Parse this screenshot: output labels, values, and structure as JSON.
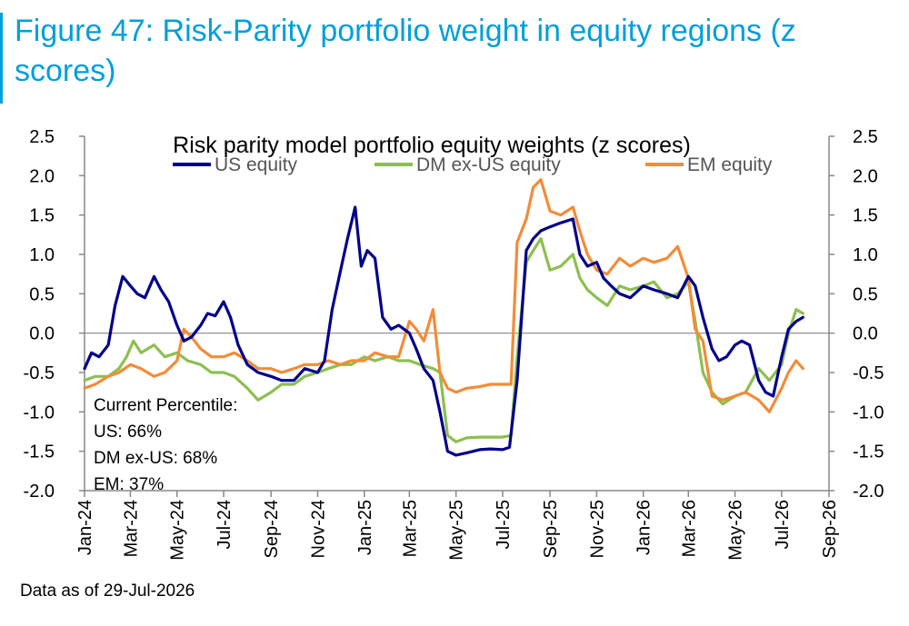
{
  "figure_title": "Figure 47: Risk-Parity portfolio weight in equity regions (z scores)",
  "source_note": "Data as of 29-Jul-2026",
  "chart_data": {
    "type": "line",
    "title": "Risk parity model portfolio equity weights (z scores)",
    "xlabel": "",
    "ylabel": "",
    "ylim": [
      -2.0,
      2.5
    ],
    "y_ticks": [
      "2.5",
      "2.0",
      "1.5",
      "1.0",
      "0.5",
      "0.0",
      "-0.5",
      "-1.0",
      "-1.5",
      "-2.0"
    ],
    "y_tick_values": [
      2.5,
      2.0,
      1.5,
      1.0,
      0.5,
      0.0,
      -0.5,
      -1.0,
      -1.5,
      -2.0
    ],
    "x_ticks": [
      "Jan-24",
      "Mar-24",
      "May-24",
      "Jul-24",
      "Sep-24",
      "Nov-24",
      "Jan-25",
      "Mar-25",
      "May-25",
      "Jul-25",
      "Sep-25",
      "Nov-25",
      "Jan-26",
      "Mar-26",
      "May-26",
      "Jul-26",
      "Sep-26"
    ],
    "x_tick_dates": [
      "2024-01-01",
      "2024-03-01",
      "2024-05-01",
      "2024-07-01",
      "2024-09-01",
      "2024-11-01",
      "2025-01-01",
      "2025-03-01",
      "2025-05-01",
      "2025-07-01",
      "2025-09-01",
      "2025-11-01",
      "2026-01-01",
      "2026-03-01",
      "2026-05-01",
      "2026-07-01",
      "2026-09-01"
    ],
    "grid": false,
    "legend_position": "top",
    "annotation": {
      "lines": [
        "Current Percentile:",
        "US: 66%",
        "DM ex-US: 68%",
        "EM: 37%"
      ]
    },
    "series": [
      {
        "name": "US equity",
        "color": "#00008b",
        "points": [
          [
            "2024-01-01",
            -0.45
          ],
          [
            "2024-01-10",
            -0.25
          ],
          [
            "2024-01-20",
            -0.3
          ],
          [
            "2024-02-01",
            -0.15
          ],
          [
            "2024-02-10",
            0.35
          ],
          [
            "2024-02-20",
            0.72
          ],
          [
            "2024-03-01",
            0.6
          ],
          [
            "2024-03-10",
            0.5
          ],
          [
            "2024-03-20",
            0.45
          ],
          [
            "2024-04-01",
            0.72
          ],
          [
            "2024-04-10",
            0.55
          ],
          [
            "2024-04-20",
            0.4
          ],
          [
            "2024-05-01",
            0.1
          ],
          [
            "2024-05-10",
            -0.1
          ],
          [
            "2024-05-20",
            -0.05
          ],
          [
            "2024-06-01",
            0.1
          ],
          [
            "2024-06-10",
            0.25
          ],
          [
            "2024-06-20",
            0.22
          ],
          [
            "2024-07-01",
            0.4
          ],
          [
            "2024-07-10",
            0.2
          ],
          [
            "2024-07-20",
            -0.15
          ],
          [
            "2024-08-01",
            -0.4
          ],
          [
            "2024-08-15",
            -0.5
          ],
          [
            "2024-09-01",
            -0.55
          ],
          [
            "2024-09-15",
            -0.6
          ],
          [
            "2024-10-01",
            -0.6
          ],
          [
            "2024-10-15",
            -0.45
          ],
          [
            "2024-11-01",
            -0.5
          ],
          [
            "2024-11-10",
            -0.35
          ],
          [
            "2024-11-20",
            0.3
          ],
          [
            "2024-12-01",
            0.8
          ],
          [
            "2024-12-10",
            1.2
          ],
          [
            "2024-12-20",
            1.6
          ],
          [
            "2024-12-28",
            0.85
          ],
          [
            "2025-01-05",
            1.05
          ],
          [
            "2025-01-15",
            0.95
          ],
          [
            "2025-01-25",
            0.2
          ],
          [
            "2025-02-05",
            0.05
          ],
          [
            "2025-02-15",
            0.1
          ],
          [
            "2025-03-01",
            0.0
          ],
          [
            "2025-03-10",
            -0.2
          ],
          [
            "2025-03-20",
            -0.45
          ],
          [
            "2025-04-01",
            -0.6
          ],
          [
            "2025-04-10",
            -1.0
          ],
          [
            "2025-04-20",
            -1.5
          ],
          [
            "2025-05-01",
            -1.55
          ],
          [
            "2025-05-15",
            -1.52
          ],
          [
            "2025-06-01",
            -1.48
          ],
          [
            "2025-06-15",
            -1.47
          ],
          [
            "2025-07-01",
            -1.48
          ],
          [
            "2025-07-10",
            -1.45
          ],
          [
            "2025-07-20",
            -0.6
          ],
          [
            "2025-08-01",
            1.05
          ],
          [
            "2025-08-10",
            1.2
          ],
          [
            "2025-08-20",
            1.3
          ],
          [
            "2025-09-01",
            1.35
          ],
          [
            "2025-09-15",
            1.4
          ],
          [
            "2025-10-01",
            1.45
          ],
          [
            "2025-10-10",
            1.0
          ],
          [
            "2025-10-20",
            0.85
          ],
          [
            "2025-11-01",
            0.9
          ],
          [
            "2025-11-10",
            0.7
          ],
          [
            "2025-11-20",
            0.6
          ],
          [
            "2025-12-01",
            0.5
          ],
          [
            "2025-12-15",
            0.45
          ],
          [
            "2026-01-01",
            0.6
          ],
          [
            "2026-01-15",
            0.55
          ],
          [
            "2026-02-01",
            0.5
          ],
          [
            "2026-02-15",
            0.45
          ],
          [
            "2026-03-01",
            0.72
          ],
          [
            "2026-03-10",
            0.6
          ],
          [
            "2026-03-20",
            0.2
          ],
          [
            "2026-04-01",
            -0.2
          ],
          [
            "2026-04-10",
            -0.35
          ],
          [
            "2026-04-20",
            -0.3
          ],
          [
            "2026-05-01",
            -0.15
          ],
          [
            "2026-05-10",
            -0.1
          ],
          [
            "2026-05-20",
            -0.15
          ],
          [
            "2026-06-01",
            -0.6
          ],
          [
            "2026-06-10",
            -0.75
          ],
          [
            "2026-06-20",
            -0.8
          ],
          [
            "2026-07-01",
            -0.3
          ],
          [
            "2026-07-10",
            0.05
          ],
          [
            "2026-07-20",
            0.15
          ],
          [
            "2026-07-29",
            0.2
          ]
        ]
      },
      {
        "name": "DM ex-US equity",
        "color": "#8dbf50",
        "points": [
          [
            "2024-01-01",
            -0.6
          ],
          [
            "2024-01-15",
            -0.55
          ],
          [
            "2024-02-01",
            -0.55
          ],
          [
            "2024-02-15",
            -0.45
          ],
          [
            "2024-02-25",
            -0.3
          ],
          [
            "2024-03-05",
            -0.1
          ],
          [
            "2024-03-15",
            -0.25
          ],
          [
            "2024-04-01",
            -0.15
          ],
          [
            "2024-04-15",
            -0.3
          ],
          [
            "2024-05-01",
            -0.25
          ],
          [
            "2024-05-15",
            -0.35
          ],
          [
            "2024-06-01",
            -0.4
          ],
          [
            "2024-06-15",
            -0.5
          ],
          [
            "2024-07-01",
            -0.5
          ],
          [
            "2024-07-15",
            -0.55
          ],
          [
            "2024-08-01",
            -0.7
          ],
          [
            "2024-08-15",
            -0.85
          ],
          [
            "2024-09-01",
            -0.75
          ],
          [
            "2024-09-15",
            -0.65
          ],
          [
            "2024-10-01",
            -0.65
          ],
          [
            "2024-10-15",
            -0.55
          ],
          [
            "2024-11-01",
            -0.5
          ],
          [
            "2024-11-15",
            -0.45
          ],
          [
            "2024-12-01",
            -0.4
          ],
          [
            "2024-12-15",
            -0.4
          ],
          [
            "2025-01-01",
            -0.3
          ],
          [
            "2025-01-15",
            -0.35
          ],
          [
            "2025-02-01",
            -0.3
          ],
          [
            "2025-02-15",
            -0.35
          ],
          [
            "2025-03-01",
            -0.35
          ],
          [
            "2025-03-15",
            -0.4
          ],
          [
            "2025-04-01",
            -0.45
          ],
          [
            "2025-04-10",
            -0.5
          ],
          [
            "2025-04-20",
            -1.3
          ],
          [
            "2025-05-01",
            -1.38
          ],
          [
            "2025-05-15",
            -1.33
          ],
          [
            "2025-06-01",
            -1.32
          ],
          [
            "2025-06-15",
            -1.32
          ],
          [
            "2025-07-01",
            -1.32
          ],
          [
            "2025-07-12",
            -1.3
          ],
          [
            "2025-07-20",
            -0.3
          ],
          [
            "2025-08-01",
            0.9
          ],
          [
            "2025-08-10",
            1.05
          ],
          [
            "2025-08-20",
            1.2
          ],
          [
            "2025-09-01",
            0.8
          ],
          [
            "2025-09-15",
            0.85
          ],
          [
            "2025-10-01",
            1.0
          ],
          [
            "2025-10-10",
            0.7
          ],
          [
            "2025-10-20",
            0.55
          ],
          [
            "2025-11-01",
            0.45
          ],
          [
            "2025-11-15",
            0.35
          ],
          [
            "2025-12-01",
            0.6
          ],
          [
            "2025-12-15",
            0.55
          ],
          [
            "2026-01-01",
            0.6
          ],
          [
            "2026-01-15",
            0.65
          ],
          [
            "2026-02-01",
            0.45
          ],
          [
            "2026-02-15",
            0.5
          ],
          [
            "2026-03-01",
            0.65
          ],
          [
            "2026-03-10",
            0.15
          ],
          [
            "2026-03-20",
            -0.5
          ],
          [
            "2026-04-01",
            -0.75
          ],
          [
            "2026-04-15",
            -0.9
          ],
          [
            "2026-05-01",
            -0.8
          ],
          [
            "2026-05-15",
            -0.75
          ],
          [
            "2026-06-01",
            -0.45
          ],
          [
            "2026-06-15",
            -0.6
          ],
          [
            "2026-07-01",
            -0.4
          ],
          [
            "2026-07-10",
            0.0
          ],
          [
            "2026-07-20",
            0.3
          ],
          [
            "2026-07-29",
            0.25
          ]
        ]
      },
      {
        "name": "EM equity",
        "color": "#f28c38",
        "points": [
          [
            "2024-01-01",
            -0.7
          ],
          [
            "2024-01-15",
            -0.65
          ],
          [
            "2024-02-01",
            -0.55
          ],
          [
            "2024-02-15",
            -0.5
          ],
          [
            "2024-03-01",
            -0.4
          ],
          [
            "2024-03-15",
            -0.45
          ],
          [
            "2024-04-01",
            -0.55
          ],
          [
            "2024-04-15",
            -0.5
          ],
          [
            "2024-05-01",
            -0.35
          ],
          [
            "2024-05-10",
            0.05
          ],
          [
            "2024-05-20",
            -0.05
          ],
          [
            "2024-06-01",
            -0.2
          ],
          [
            "2024-06-15",
            -0.3
          ],
          [
            "2024-07-01",
            -0.3
          ],
          [
            "2024-07-15",
            -0.25
          ],
          [
            "2024-08-01",
            -0.35
          ],
          [
            "2024-08-15",
            -0.45
          ],
          [
            "2024-09-01",
            -0.45
          ],
          [
            "2024-09-15",
            -0.5
          ],
          [
            "2024-10-01",
            -0.45
          ],
          [
            "2024-10-15",
            -0.4
          ],
          [
            "2024-11-01",
            -0.4
          ],
          [
            "2024-11-15",
            -0.35
          ],
          [
            "2024-12-01",
            -0.4
          ],
          [
            "2024-12-15",
            -0.35
          ],
          [
            "2025-01-01",
            -0.35
          ],
          [
            "2025-01-15",
            -0.25
          ],
          [
            "2025-02-01",
            -0.3
          ],
          [
            "2025-02-15",
            -0.3
          ],
          [
            "2025-03-01",
            0.15
          ],
          [
            "2025-03-10",
            0.05
          ],
          [
            "2025-03-20",
            -0.1
          ],
          [
            "2025-04-01",
            0.3
          ],
          [
            "2025-04-10",
            -0.5
          ],
          [
            "2025-04-20",
            -0.7
          ],
          [
            "2025-05-01",
            -0.75
          ],
          [
            "2025-05-15",
            -0.7
          ],
          [
            "2025-06-01",
            -0.68
          ],
          [
            "2025-06-15",
            -0.65
          ],
          [
            "2025-07-01",
            -0.65
          ],
          [
            "2025-07-12",
            -0.65
          ],
          [
            "2025-07-20",
            1.15
          ],
          [
            "2025-08-01",
            1.45
          ],
          [
            "2025-08-10",
            1.85
          ],
          [
            "2025-08-20",
            1.95
          ],
          [
            "2025-09-01",
            1.55
          ],
          [
            "2025-09-15",
            1.5
          ],
          [
            "2025-10-01",
            1.6
          ],
          [
            "2025-10-10",
            1.3
          ],
          [
            "2025-10-20",
            1.0
          ],
          [
            "2025-11-01",
            0.8
          ],
          [
            "2025-11-15",
            0.75
          ],
          [
            "2025-12-01",
            0.95
          ],
          [
            "2025-12-15",
            0.85
          ],
          [
            "2026-01-01",
            0.95
          ],
          [
            "2026-01-15",
            0.9
          ],
          [
            "2026-02-01",
            0.95
          ],
          [
            "2026-02-15",
            1.1
          ],
          [
            "2026-03-01",
            0.7
          ],
          [
            "2026-03-10",
            0.05
          ],
          [
            "2026-03-20",
            -0.1
          ],
          [
            "2026-04-01",
            -0.8
          ],
          [
            "2026-04-15",
            -0.85
          ],
          [
            "2026-05-01",
            -0.8
          ],
          [
            "2026-05-15",
            -0.75
          ],
          [
            "2026-06-01",
            -0.85
          ],
          [
            "2026-06-15",
            -1.0
          ],
          [
            "2026-07-01",
            -0.7
          ],
          [
            "2026-07-10",
            -0.5
          ],
          [
            "2026-07-20",
            -0.35
          ],
          [
            "2026-07-29",
            -0.45
          ]
        ]
      }
    ]
  }
}
